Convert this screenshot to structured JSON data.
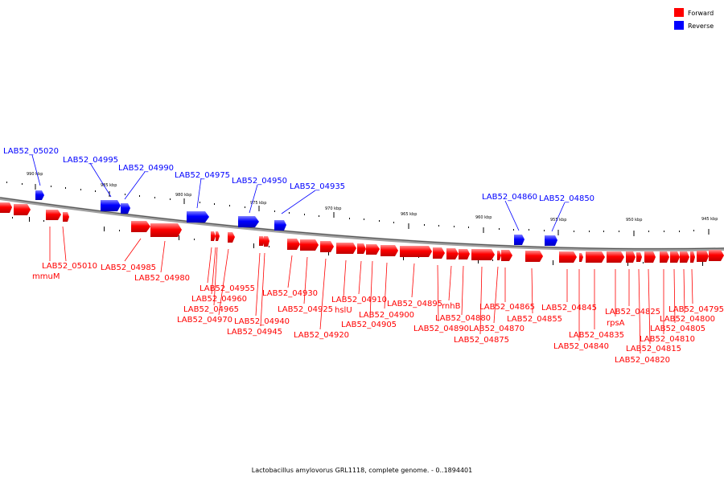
{
  "legend": {
    "forward": {
      "label": "Forward",
      "color": "#ff0000"
    },
    "reverse": {
      "label": "Reverse",
      "color": "#0000ff"
    }
  },
  "caption": "Lactobacillus amylovorus GRL1118, complete genome. - 0..1894401",
  "ticks": [
    "990 kbp",
    "985 kbp",
    "980 kbp",
    "975 kbp",
    "970 kbp",
    "965 kbp",
    "960 kbp",
    "955 kbp",
    "950 kbp",
    "945 kbp"
  ],
  "genes": {
    "reverse": [
      "LAB52_05020",
      "LAB52_04995",
      "LAB52_04990",
      "LAB52_04975",
      "LAB52_04950",
      "LAB52_04935",
      "LAB52_04860",
      "LAB52_04850"
    ],
    "forward": [
      "LAB52_05010",
      "mmuM",
      "LAB52_04985",
      "LAB52_04980",
      "LAB52_04955",
      "LAB52_04960",
      "LAB52_04965",
      "LAB52_04970",
      "LAB52_04940",
      "LAB52_04945",
      "LAB52_04930",
      "LAB52_04925",
      "LAB52_04920",
      "hslU",
      "LAB52_04910",
      "LAB52_04905",
      "LAB52_04900",
      "LAB52_04895",
      "rnhB",
      "LAB52_04890",
      "LAB52_04880",
      "LAB52_04875",
      "LAB52_04870",
      "LAB52_04865",
      "LAB52_04855",
      "LAB52_04845",
      "LAB52_04840",
      "LAB52_04835",
      "rpsA",
      "LAB52_04825",
      "LAB52_04820",
      "LAB52_04815",
      "LAB52_04810",
      "LAB52_04805",
      "LAB52_04800",
      "LAB52_04795"
    ]
  }
}
